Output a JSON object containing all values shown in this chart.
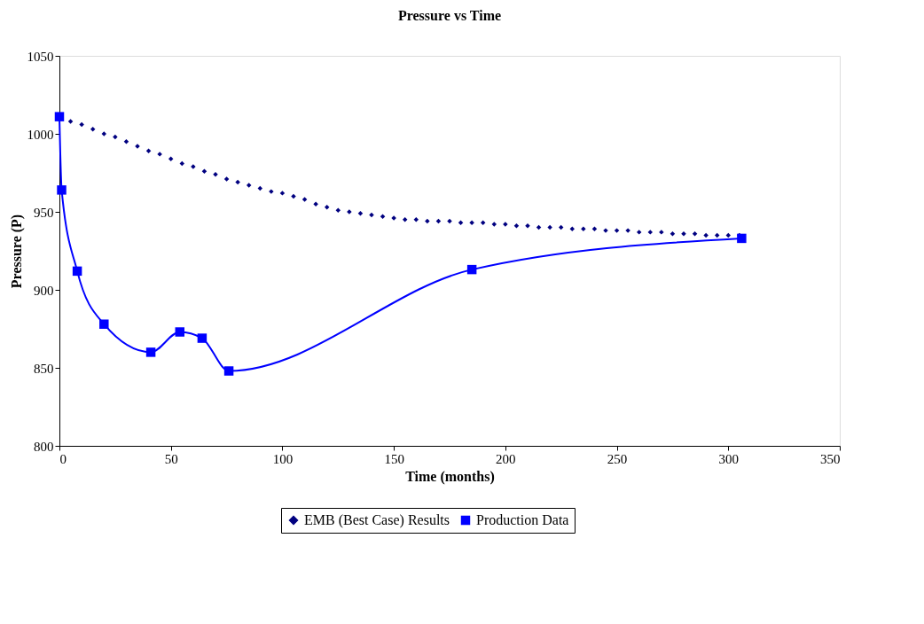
{
  "chart_data": {
    "type": "line",
    "title": "Pressure vs Time",
    "xlabel": "Time (months)",
    "ylabel": "Pressure (P)",
    "xlim": [
      0,
      350
    ],
    "xticks": [
      0,
      50,
      100,
      150,
      200,
      250,
      300,
      350
    ],
    "ylim": [
      800,
      1050
    ],
    "yticks": [
      800,
      850,
      900,
      950,
      1000,
      1050
    ],
    "grid": false,
    "legend": "bottom",
    "series": [
      {
        "name": "EMB (Best Case) Results",
        "type": "scatter",
        "marker": "diamond",
        "color": "#000080",
        "x": [
          5,
          10,
          15,
          20,
          25,
          30,
          35,
          40,
          45,
          50,
          55,
          60,
          65,
          70,
          75,
          80,
          85,
          90,
          95,
          100,
          105,
          110,
          115,
          120,
          125,
          130,
          135,
          140,
          145,
          150,
          155,
          160,
          165,
          170,
          175,
          180,
          185,
          190,
          195,
          200,
          205,
          210,
          215,
          220,
          225,
          230,
          235,
          240,
          245,
          250,
          255,
          260,
          265,
          270,
          275,
          280,
          285,
          290,
          295,
          300,
          305
        ],
        "values": [
          1008,
          1006,
          1003,
          1000,
          998,
          995,
          992,
          989,
          987,
          984,
          981,
          979,
          976,
          974,
          971,
          969,
          967,
          965,
          963,
          962,
          960,
          958,
          955,
          953,
          951,
          950,
          949,
          948,
          947,
          946,
          945,
          945,
          944,
          944,
          944,
          943,
          943,
          943,
          942,
          942,
          941,
          941,
          940,
          940,
          940,
          939,
          939,
          939,
          938,
          938,
          938,
          937,
          937,
          937,
          936,
          936,
          936,
          935,
          935,
          935,
          935
        ]
      },
      {
        "name": "Production Data",
        "marker": "square",
        "color": "#0000ff",
        "x": [
          0,
          1,
          8,
          20,
          41,
          54,
          64,
          76,
          185,
          306
        ],
        "values": [
          1011,
          964,
          912,
          878,
          860,
          873,
          869,
          848,
          913,
          933
        ]
      }
    ]
  }
}
